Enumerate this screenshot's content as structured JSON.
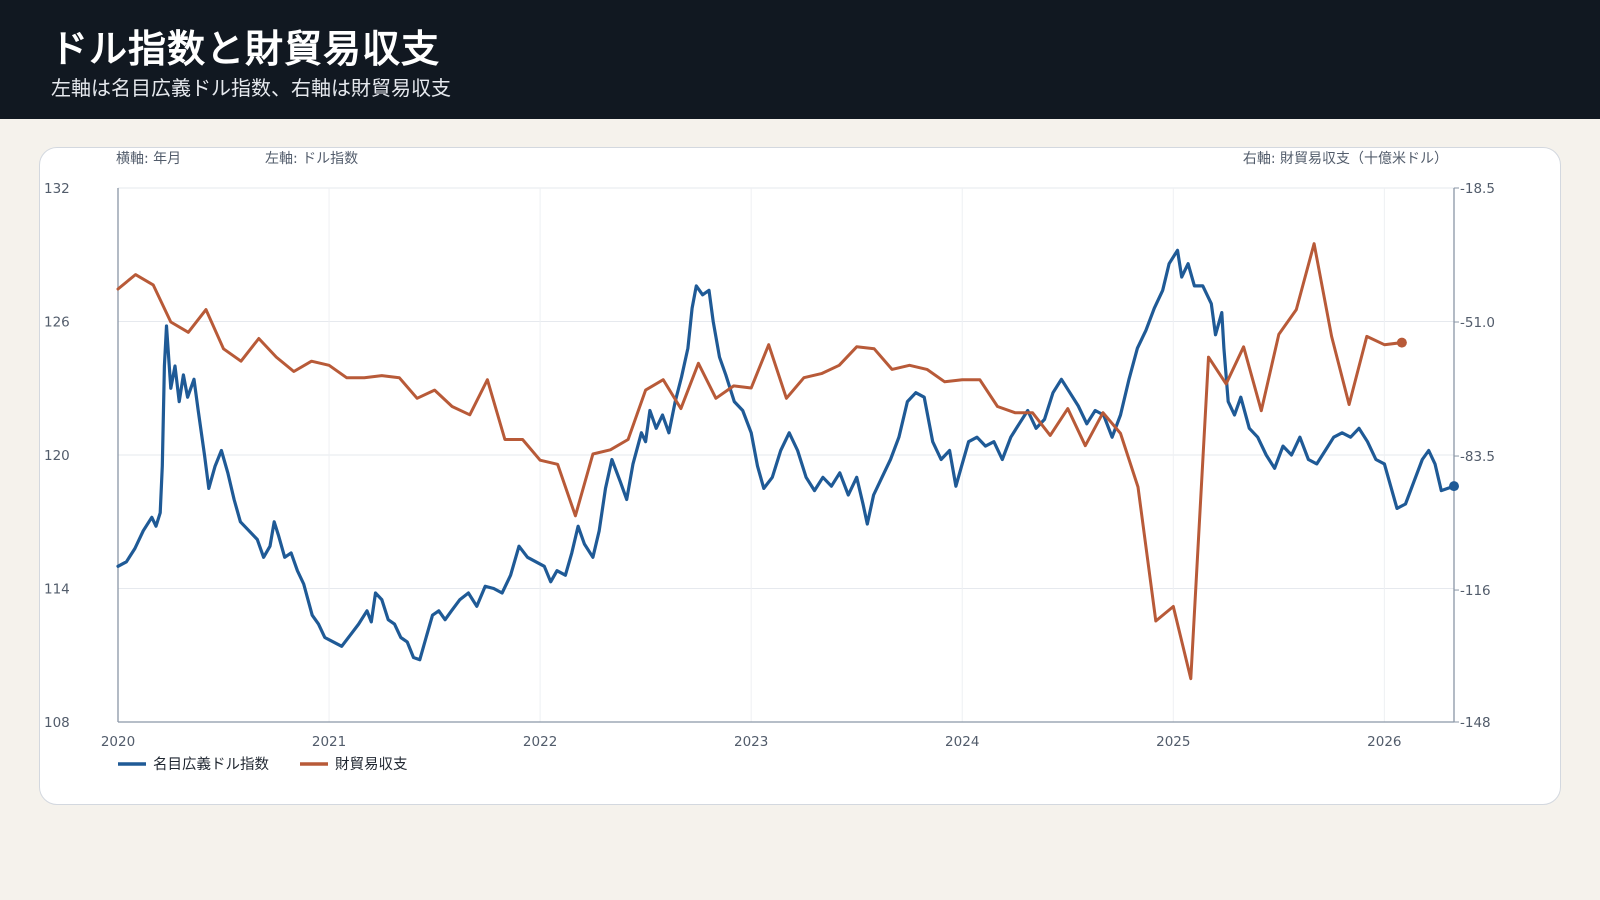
{
  "header": {
    "title": "ドル指数と財貿易収支",
    "subtitle": "左軸は名目広義ドル指数、右軸は財貿易収支"
  },
  "chart_data": {
    "type": "line",
    "x_axis_label": "横軸: 年月",
    "y_left_label": "左軸: ドル指数",
    "y_right_label": "右軸: 財貿易収支（十億米ドル）",
    "xlim": [
      2020.0,
      2026.33
    ],
    "x_ticks": [
      {
        "value": 2020,
        "label": "2020"
      },
      {
        "value": 2021,
        "label": "2021"
      },
      {
        "value": 2022,
        "label": "2022"
      },
      {
        "value": 2023,
        "label": "2023"
      },
      {
        "value": 2024,
        "label": "2024"
      },
      {
        "value": 2025,
        "label": "2025"
      },
      {
        "value": 2026,
        "label": "2026"
      }
    ],
    "y_left": {
      "lim": [
        108,
        132
      ],
      "ticks": [
        {
          "value": 132,
          "label": "132"
        },
        {
          "value": 126,
          "label": "126"
        },
        {
          "value": 120,
          "label": "120"
        },
        {
          "value": 114,
          "label": "114"
        },
        {
          "value": 108,
          "label": "108"
        }
      ]
    },
    "y_right": {
      "lim": [
        -148,
        -18.5
      ],
      "ticks": [
        {
          "value": -18.5,
          "label": "-18.5"
        },
        {
          "value": -51.0,
          "label": "-51.0"
        },
        {
          "value": -83.5,
          "label": "-83.5"
        },
        {
          "value": -116,
          "label": "-116"
        },
        {
          "value": -148,
          "label": "-148"
        }
      ]
    },
    "grid": true,
    "legend_position": "bottom-left",
    "colors": {
      "dollar_index": "#1f5a96",
      "trade_balance": "#b85a38"
    },
    "series": [
      {
        "name": "名目広義ドル指数",
        "axis": "left",
        "values": [
          [
            2020.0,
            115.0
          ],
          [
            2020.04,
            115.2
          ],
          [
            2020.08,
            115.8
          ],
          [
            2020.12,
            116.6
          ],
          [
            2020.16,
            117.2
          ],
          [
            2020.18,
            116.8
          ],
          [
            2020.2,
            117.4
          ],
          [
            2020.21,
            119.5
          ],
          [
            2020.22,
            124.0
          ],
          [
            2020.23,
            125.8
          ],
          [
            2020.25,
            123.0
          ],
          [
            2020.27,
            124.0
          ],
          [
            2020.29,
            122.4
          ],
          [
            2020.31,
            123.6
          ],
          [
            2020.33,
            122.6
          ],
          [
            2020.36,
            123.4
          ],
          [
            2020.38,
            122.0
          ],
          [
            2020.41,
            120.0
          ],
          [
            2020.43,
            118.5
          ],
          [
            2020.46,
            119.5
          ],
          [
            2020.49,
            120.2
          ],
          [
            2020.52,
            119.2
          ],
          [
            2020.55,
            118.0
          ],
          [
            2020.58,
            117.0
          ],
          [
            2020.62,
            116.6
          ],
          [
            2020.66,
            116.2
          ],
          [
            2020.69,
            115.4
          ],
          [
            2020.72,
            115.9
          ],
          [
            2020.74,
            117.0
          ],
          [
            2020.76,
            116.4
          ],
          [
            2020.79,
            115.4
          ],
          [
            2020.82,
            115.6
          ],
          [
            2020.85,
            114.8
          ],
          [
            2020.88,
            114.2
          ],
          [
            2020.92,
            112.8
          ],
          [
            2020.95,
            112.4
          ],
          [
            2020.98,
            111.8
          ],
          [
            2021.02,
            111.6
          ],
          [
            2021.06,
            111.4
          ],
          [
            2021.1,
            111.9
          ],
          [
            2021.14,
            112.4
          ],
          [
            2021.18,
            113.0
          ],
          [
            2021.2,
            112.5
          ],
          [
            2021.22,
            113.8
          ],
          [
            2021.25,
            113.5
          ],
          [
            2021.28,
            112.6
          ],
          [
            2021.31,
            112.4
          ],
          [
            2021.34,
            111.8
          ],
          [
            2021.37,
            111.6
          ],
          [
            2021.4,
            110.9
          ],
          [
            2021.43,
            110.8
          ],
          [
            2021.46,
            111.8
          ],
          [
            2021.49,
            112.8
          ],
          [
            2021.52,
            113.0
          ],
          [
            2021.55,
            112.6
          ],
          [
            2021.58,
            113.0
          ],
          [
            2021.62,
            113.5
          ],
          [
            2021.66,
            113.8
          ],
          [
            2021.7,
            113.2
          ],
          [
            2021.74,
            114.1
          ],
          [
            2021.78,
            114.0
          ],
          [
            2021.82,
            113.8
          ],
          [
            2021.86,
            114.6
          ],
          [
            2021.9,
            115.9
          ],
          [
            2021.94,
            115.4
          ],
          [
            2021.98,
            115.2
          ],
          [
            2022.02,
            115.0
          ],
          [
            2022.05,
            114.3
          ],
          [
            2022.08,
            114.8
          ],
          [
            2022.12,
            114.6
          ],
          [
            2022.15,
            115.6
          ],
          [
            2022.18,
            116.8
          ],
          [
            2022.21,
            116.0
          ],
          [
            2022.25,
            115.4
          ],
          [
            2022.28,
            116.6
          ],
          [
            2022.31,
            118.5
          ],
          [
            2022.34,
            119.8
          ],
          [
            2022.38,
            118.8
          ],
          [
            2022.41,
            118.0
          ],
          [
            2022.44,
            119.6
          ],
          [
            2022.48,
            121.0
          ],
          [
            2022.5,
            120.6
          ],
          [
            2022.52,
            122.0
          ],
          [
            2022.55,
            121.2
          ],
          [
            2022.58,
            121.8
          ],
          [
            2022.61,
            121.0
          ],
          [
            2022.64,
            122.4
          ],
          [
            2022.67,
            123.5
          ],
          [
            2022.7,
            124.8
          ],
          [
            2022.72,
            126.6
          ],
          [
            2022.74,
            127.6
          ],
          [
            2022.77,
            127.2
          ],
          [
            2022.8,
            127.4
          ],
          [
            2022.82,
            126.0
          ],
          [
            2022.85,
            124.4
          ],
          [
            2022.88,
            123.6
          ],
          [
            2022.92,
            122.4
          ],
          [
            2022.96,
            122.0
          ],
          [
            2023.0,
            121.0
          ],
          [
            2023.03,
            119.5
          ],
          [
            2023.06,
            118.5
          ],
          [
            2023.1,
            119.0
          ],
          [
            2023.14,
            120.2
          ],
          [
            2023.18,
            121.0
          ],
          [
            2023.22,
            120.2
          ],
          [
            2023.26,
            119.0
          ],
          [
            2023.3,
            118.4
          ],
          [
            2023.34,
            119.0
          ],
          [
            2023.38,
            118.6
          ],
          [
            2023.42,
            119.2
          ],
          [
            2023.46,
            118.2
          ],
          [
            2023.5,
            119.0
          ],
          [
            2023.53,
            117.8
          ],
          [
            2023.55,
            116.9
          ],
          [
            2023.58,
            118.2
          ],
          [
            2023.62,
            119.0
          ],
          [
            2023.66,
            119.8
          ],
          [
            2023.7,
            120.8
          ],
          [
            2023.74,
            122.4
          ],
          [
            2023.78,
            122.8
          ],
          [
            2023.82,
            122.6
          ],
          [
            2023.86,
            120.6
          ],
          [
            2023.9,
            119.8
          ],
          [
            2023.94,
            120.2
          ],
          [
            2023.97,
            118.6
          ],
          [
            2024.0,
            119.6
          ],
          [
            2024.03,
            120.6
          ],
          [
            2024.07,
            120.8
          ],
          [
            2024.11,
            120.4
          ],
          [
            2024.15,
            120.6
          ],
          [
            2024.19,
            119.8
          ],
          [
            2024.23,
            120.8
          ],
          [
            2024.27,
            121.4
          ],
          [
            2024.31,
            122.0
          ],
          [
            2024.35,
            121.2
          ],
          [
            2024.39,
            121.6
          ],
          [
            2024.43,
            122.8
          ],
          [
            2024.47,
            123.4
          ],
          [
            2024.51,
            122.8
          ],
          [
            2024.55,
            122.2
          ],
          [
            2024.59,
            121.4
          ],
          [
            2024.63,
            122.0
          ],
          [
            2024.67,
            121.8
          ],
          [
            2024.71,
            120.8
          ],
          [
            2024.75,
            121.8
          ],
          [
            2024.79,
            123.4
          ],
          [
            2024.83,
            124.8
          ],
          [
            2024.87,
            125.6
          ],
          [
            2024.91,
            126.6
          ],
          [
            2024.95,
            127.4
          ],
          [
            2024.98,
            128.6
          ],
          [
            2025.02,
            129.2
          ],
          [
            2025.04,
            128.0
          ],
          [
            2025.07,
            128.6
          ],
          [
            2025.1,
            127.6
          ],
          [
            2025.14,
            127.6
          ],
          [
            2025.18,
            126.8
          ],
          [
            2025.2,
            125.4
          ],
          [
            2025.23,
            126.4
          ],
          [
            2025.24,
            124.8
          ],
          [
            2025.26,
            122.4
          ],
          [
            2025.29,
            121.8
          ],
          [
            2025.32,
            122.6
          ],
          [
            2025.36,
            121.2
          ],
          [
            2025.4,
            120.8
          ],
          [
            2025.44,
            120.0
          ],
          [
            2025.48,
            119.4
          ],
          [
            2025.52,
            120.4
          ],
          [
            2025.56,
            120.0
          ],
          [
            2025.6,
            120.8
          ],
          [
            2025.64,
            119.8
          ],
          [
            2025.68,
            119.6
          ],
          [
            2025.72,
            120.2
          ],
          [
            2025.76,
            120.8
          ],
          [
            2025.8,
            121.0
          ],
          [
            2025.84,
            120.8
          ],
          [
            2025.88,
            121.2
          ],
          [
            2025.92,
            120.6
          ],
          [
            2025.96,
            119.8
          ],
          [
            2026.0,
            119.6
          ],
          [
            2026.03,
            118.6
          ],
          [
            2026.06,
            117.6
          ],
          [
            2026.1,
            117.8
          ],
          [
            2026.14,
            118.8
          ],
          [
            2026.18,
            119.8
          ],
          [
            2026.21,
            120.2
          ],
          [
            2026.24,
            119.6
          ],
          [
            2026.27,
            118.4
          ],
          [
            2026.3,
            118.5
          ],
          [
            2026.33,
            118.6
          ]
        ]
      },
      {
        "name": "財貿易収支",
        "axis": "right",
        "values": [
          [
            2020.0,
            -43.0
          ],
          [
            2020.083,
            -39.5
          ],
          [
            2020.167,
            -42.0
          ],
          [
            2020.25,
            -51.0
          ],
          [
            2020.333,
            -53.5
          ],
          [
            2020.417,
            -48.0
          ],
          [
            2020.5,
            -57.5
          ],
          [
            2020.583,
            -60.5
          ],
          [
            2020.667,
            -55.0
          ],
          [
            2020.75,
            -59.5
          ],
          [
            2020.833,
            -63.0
          ],
          [
            2020.917,
            -60.5
          ],
          [
            2021.0,
            -61.5
          ],
          [
            2021.083,
            -64.5
          ],
          [
            2021.167,
            -64.5
          ],
          [
            2021.25,
            -64.0
          ],
          [
            2021.333,
            -64.5
          ],
          [
            2021.417,
            -69.5
          ],
          [
            2021.5,
            -67.5
          ],
          [
            2021.583,
            -71.5
          ],
          [
            2021.667,
            -73.5
          ],
          [
            2021.75,
            -65.0
          ],
          [
            2021.833,
            -79.5
          ],
          [
            2021.917,
            -79.5
          ],
          [
            2022.0,
            -84.5
          ],
          [
            2022.083,
            -85.5
          ],
          [
            2022.167,
            -98.0
          ],
          [
            2022.25,
            -83.0
          ],
          [
            2022.333,
            -82.0
          ],
          [
            2022.417,
            -79.5
          ],
          [
            2022.5,
            -67.5
          ],
          [
            2022.583,
            -65.0
          ],
          [
            2022.667,
            -72.0
          ],
          [
            2022.75,
            -61.0
          ],
          [
            2022.833,
            -69.5
          ],
          [
            2022.917,
            -66.5
          ],
          [
            2023.0,
            -67.0
          ],
          [
            2023.083,
            -56.5
          ],
          [
            2023.167,
            -69.5
          ],
          [
            2023.25,
            -64.5
          ],
          [
            2023.333,
            -63.5
          ],
          [
            2023.417,
            -61.5
          ],
          [
            2023.5,
            -57.0
          ],
          [
            2023.583,
            -57.5
          ],
          [
            2023.667,
            -62.5
          ],
          [
            2023.75,
            -61.5
          ],
          [
            2023.833,
            -62.5
          ],
          [
            2023.917,
            -65.5
          ],
          [
            2024.0,
            -65.0
          ],
          [
            2024.083,
            -65.0
          ],
          [
            2024.167,
            -71.5
          ],
          [
            2024.25,
            -73.0
          ],
          [
            2024.333,
            -73.0
          ],
          [
            2024.417,
            -78.5
          ],
          [
            2024.5,
            -72.0
          ],
          [
            2024.583,
            -81.0
          ],
          [
            2024.667,
            -73.0
          ],
          [
            2024.75,
            -78.0
          ],
          [
            2024.833,
            -91.0
          ],
          [
            2024.917,
            -123.5
          ],
          [
            2025.0,
            -120.0
          ],
          [
            2025.083,
            -137.5
          ],
          [
            2025.167,
            -59.5
          ],
          [
            2025.25,
            -66.0
          ],
          [
            2025.333,
            -57.0
          ],
          [
            2025.417,
            -72.5
          ],
          [
            2025.5,
            -54.0
          ],
          [
            2025.583,
            -48.0
          ],
          [
            2025.667,
            -32.0
          ],
          [
            2025.75,
            -54.5
          ],
          [
            2025.833,
            -71.0
          ],
          [
            2025.917,
            -54.5
          ],
          [
            2026.0,
            -56.5
          ],
          [
            2026.083,
            -56.0
          ]
        ]
      }
    ]
  }
}
